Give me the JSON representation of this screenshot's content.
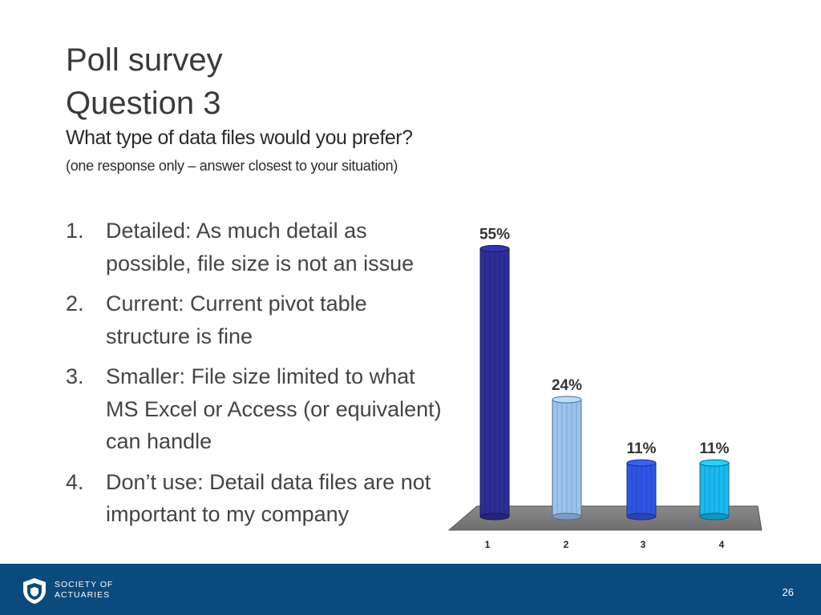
{
  "slide": {
    "title_line1": "Poll survey",
    "title_line2": "Question 3",
    "subtitle": "What type of data files would you prefer?",
    "note": "(one response only – answer closest to your situation)"
  },
  "options": [
    {
      "num": "1.",
      "text": "Detailed: As much detail as possible, file size is not an issue"
    },
    {
      "num": "2.",
      "text": "Current: Current pivot table structure is fine"
    },
    {
      "num": "3.",
      "text": "Smaller: File size limited to what MS Excel or Access (or equivalent) can handle"
    },
    {
      "num": "4.",
      "text": "Don’t use: Detail data files are not important to my company"
    }
  ],
  "chart_data": {
    "type": "bar",
    "categories": [
      "1",
      "2",
      "3",
      "4"
    ],
    "values": [
      55,
      24,
      11,
      11
    ],
    "data_labels": [
      "55%",
      "24%",
      "11%",
      "11%"
    ],
    "colors": [
      "#2b2f96",
      "#9cc3f0",
      "#2f55e6",
      "#19b9f2"
    ],
    "ylim": [
      0,
      60
    ],
    "grid": false
  },
  "footer": {
    "org_line1": "SOCIETY OF",
    "org_line2": "ACTUARIES",
    "page_number": "26",
    "background": "#0a4a7d"
  }
}
